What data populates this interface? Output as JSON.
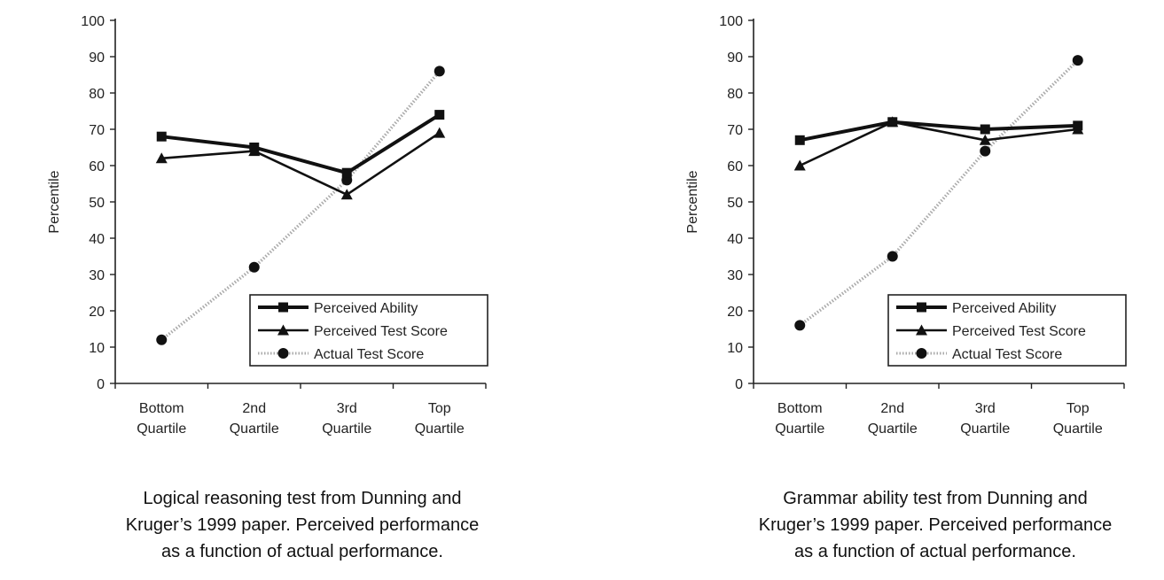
{
  "chart_data": [
    {
      "type": "line",
      "categories": [
        "Bottom Quartile",
        "2nd Quartile",
        "3rd Quartile",
        "Top Quartile"
      ],
      "category_lines": [
        [
          "Bottom",
          "Quartile"
        ],
        [
          "2nd",
          "Quartile"
        ],
        [
          "3rd",
          "Quartile"
        ],
        [
          "Top",
          "Quartile"
        ]
      ],
      "ylabel": "Percentile",
      "xlabel": "",
      "ylim": [
        0,
        100
      ],
      "yticks": [
        "0",
        "10",
        "20",
        "30",
        "40",
        "50",
        "60",
        "70",
        "80",
        "90",
        "100"
      ],
      "grid": false,
      "legend_position": "bottom-right",
      "series": [
        {
          "name": "Perceived Ability",
          "marker": "square",
          "line": "solid-thick",
          "color": "#111111",
          "values": [
            68,
            65,
            58,
            74
          ]
        },
        {
          "name": "Perceived Test Score",
          "marker": "triangle",
          "line": "solid",
          "color": "#111111",
          "values": [
            62,
            64,
            52,
            69
          ]
        },
        {
          "name": "Actual Test Score",
          "marker": "circle",
          "line": "dotted-gray",
          "color": "#999999",
          "values": [
            12,
            32,
            56,
            86
          ]
        }
      ],
      "caption_lines": [
        "Logical reasoning test from Dunning and",
        "Kruger’s 1999 paper. Perceived performance",
        "as a function of actual performance."
      ]
    },
    {
      "type": "line",
      "categories": [
        "Bottom Quartile",
        "2nd Quartile",
        "3rd Quartile",
        "Top Quartile"
      ],
      "category_lines": [
        [
          "Bottom",
          "Quartile"
        ],
        [
          "2nd",
          "Quartile"
        ],
        [
          "3rd",
          "Quartile"
        ],
        [
          "Top",
          "Quartile"
        ]
      ],
      "ylabel": "Percentile",
      "xlabel": "",
      "ylim": [
        0,
        100
      ],
      "yticks": [
        "0",
        "10",
        "20",
        "30",
        "40",
        "50",
        "60",
        "70",
        "80",
        "90",
        "100"
      ],
      "grid": false,
      "legend_position": "bottom-right",
      "series": [
        {
          "name": "Perceived Ability",
          "marker": "square",
          "line": "solid-thick",
          "color": "#111111",
          "values": [
            67,
            72,
            70,
            71
          ]
        },
        {
          "name": "Perceived Test Score",
          "marker": "triangle",
          "line": "solid",
          "color": "#111111",
          "values": [
            60,
            72,
            67,
            70
          ]
        },
        {
          "name": "Actual Test Score",
          "marker": "circle",
          "line": "dotted-gray",
          "color": "#999999",
          "values": [
            16,
            35,
            64,
            89
          ]
        }
      ],
      "caption_lines": [
        "Grammar ability test from Dunning and",
        "Kruger’s 1999 paper. Perceived performance",
        "as a function of actual performance."
      ]
    }
  ]
}
